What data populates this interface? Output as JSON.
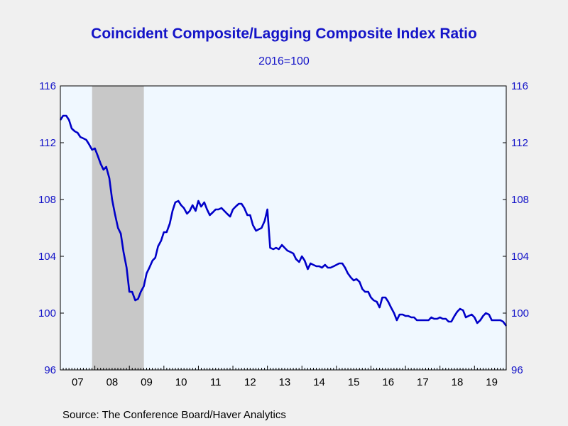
{
  "chart_data": {
    "type": "line",
    "title": "Coincident Composite/Lagging Composite Index Ratio",
    "subtitle": "2016=100",
    "source": "Source:  The Conference Board/Haver Analytics",
    "ylim": [
      96,
      116
    ],
    "y_ticks": [
      96,
      100,
      104,
      108,
      112,
      116
    ],
    "y_tick_labels": [
      "96",
      "100",
      "104",
      "108",
      "112",
      "116"
    ],
    "xlim": [
      2007.0,
      2019.92
    ],
    "x_tick_labels": [
      "07",
      "08",
      "09",
      "10",
      "11",
      "12",
      "13",
      "14",
      "15",
      "16",
      "17",
      "18",
      "19"
    ],
    "recession_bands": [
      [
        2007.92,
        2009.42
      ]
    ],
    "grid": false,
    "colors": {
      "line": "#0000c8",
      "recession": "#c8c8c8",
      "plot_bg": "#f0f8ff",
      "text": "#1414c8"
    },
    "series": [
      {
        "x": [
          2007.0,
          2007.08,
          2007.17,
          2007.25,
          2007.33,
          2007.42,
          2007.5,
          2007.58,
          2007.67,
          2007.75,
          2007.83,
          2007.92,
          2008.0,
          2008.08,
          2008.17,
          2008.25,
          2008.33,
          2008.42,
          2008.5,
          2008.58,
          2008.67,
          2008.75,
          2008.83,
          2008.92,
          2009.0,
          2009.08,
          2009.17,
          2009.25,
          2009.33,
          2009.42,
          2009.5,
          2009.58,
          2009.67,
          2009.75,
          2009.83,
          2009.92,
          2010.0,
          2010.08,
          2010.17,
          2010.25,
          2010.33,
          2010.42,
          2010.5,
          2010.58,
          2010.67,
          2010.75,
          2010.83,
          2010.92,
          2011.0,
          2011.08,
          2011.17,
          2011.25,
          2011.33,
          2011.42,
          2011.5,
          2011.58,
          2011.67,
          2011.75,
          2011.83,
          2011.92,
          2012.0,
          2012.08,
          2012.17,
          2012.25,
          2012.33,
          2012.42,
          2012.5,
          2012.58,
          2012.67,
          2012.75,
          2012.83,
          2012.92,
          2013.0,
          2013.08,
          2013.17,
          2013.25,
          2013.33,
          2013.42,
          2013.5,
          2013.58,
          2013.67,
          2013.75,
          2013.83,
          2013.92,
          2014.0,
          2014.08,
          2014.17,
          2014.25,
          2014.33,
          2014.42,
          2014.5,
          2014.58,
          2014.67,
          2014.75,
          2014.83,
          2014.92,
          2015.0,
          2015.08,
          2015.17,
          2015.25,
          2015.33,
          2015.42,
          2015.5,
          2015.58,
          2015.67,
          2015.75,
          2015.83,
          2015.92,
          2016.0,
          2016.08,
          2016.17,
          2016.25,
          2016.33,
          2016.42,
          2016.5,
          2016.58,
          2016.67,
          2016.75,
          2016.83,
          2016.92,
          2017.0,
          2017.08,
          2017.17,
          2017.25,
          2017.33,
          2017.42,
          2017.5,
          2017.58,
          2017.67,
          2017.75,
          2017.83,
          2017.92,
          2018.0,
          2018.08,
          2018.17,
          2018.25,
          2018.33,
          2018.42,
          2018.5,
          2018.58,
          2018.67,
          2018.75,
          2018.83,
          2018.92,
          2019.0,
          2019.08,
          2019.17,
          2019.25,
          2019.33,
          2019.42,
          2019.5,
          2019.58,
          2019.67,
          2019.75,
          2019.83,
          2019.92
        ],
        "y": [
          113.6,
          113.9,
          113.9,
          113.6,
          113.0,
          112.8,
          112.7,
          112.4,
          112.3,
          112.2,
          111.9,
          111.5,
          111.6,
          111.1,
          110.5,
          110.1,
          110.3,
          109.5,
          108.0,
          107.0,
          106.0,
          105.6,
          104.3,
          103.2,
          101.5,
          101.5,
          100.9,
          101.0,
          101.5,
          101.9,
          102.8,
          103.2,
          103.7,
          103.9,
          104.7,
          105.1,
          105.7,
          105.7,
          106.3,
          107.2,
          107.8,
          107.9,
          107.6,
          107.4,
          107.0,
          107.2,
          107.6,
          107.2,
          107.9,
          107.5,
          107.8,
          107.3,
          106.9,
          107.1,
          107.3,
          107.3,
          107.4,
          107.2,
          107.0,
          106.8,
          107.3,
          107.5,
          107.7,
          107.7,
          107.4,
          106.9,
          106.9,
          106.2,
          105.8,
          105.9,
          106.0,
          106.5,
          107.3,
          104.6,
          104.5,
          104.6,
          104.5,
          104.8,
          104.6,
          104.4,
          104.3,
          104.2,
          103.8,
          103.6,
          104.0,
          103.7,
          103.1,
          103.5,
          103.4,
          103.3,
          103.3,
          103.2,
          103.4,
          103.2,
          103.2,
          103.3,
          103.4,
          103.5,
          103.5,
          103.2,
          102.8,
          102.5,
          102.3,
          102.4,
          102.2,
          101.7,
          101.5,
          101.5,
          101.1,
          100.9,
          100.8,
          100.4,
          101.1,
          101.1,
          100.8,
          100.4,
          100.0,
          99.5,
          99.9,
          99.9,
          99.8,
          99.8,
          99.7,
          99.7,
          99.5,
          99.5,
          99.5,
          99.5,
          99.5,
          99.7,
          99.6,
          99.6,
          99.7,
          99.6,
          99.6,
          99.4,
          99.4,
          99.8,
          100.1,
          100.3,
          100.2,
          99.7,
          99.8,
          99.9,
          99.7,
          99.3,
          99.5,
          99.8,
          100.0,
          99.9,
          99.5,
          99.5,
          99.5,
          99.5,
          99.4,
          99.1
        ]
      }
    ]
  }
}
